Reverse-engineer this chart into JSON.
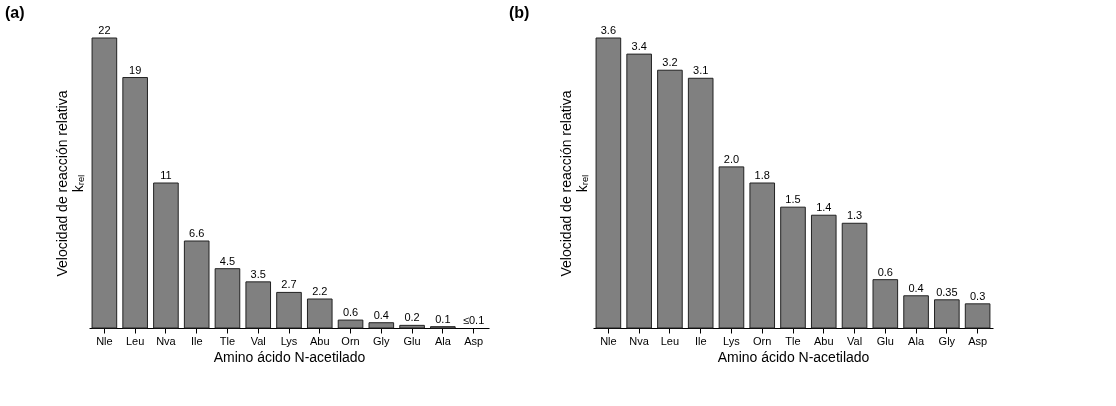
{
  "chart_data": [
    {
      "type": "bar",
      "title": "(a)",
      "xlabel": "Amino ácido N-acetilado",
      "ylabel": "Velocidad de reacción relativa\nkᵣₑₗ",
      "categories": [
        "Nle",
        "Leu",
        "Nva",
        "Ile",
        "Tle",
        "Val",
        "Lys",
        "Abu",
        "Orn",
        "Gly",
        "Glu",
        "Ala",
        "Asp"
      ],
      "values": [
        22,
        19,
        11,
        6.6,
        4.5,
        3.5,
        2.7,
        2.2,
        0.6,
        0.4,
        0.2,
        0.1,
        0
      ],
      "value_labels": [
        "22",
        "19",
        "11",
        "6.6",
        "4.5",
        "3.5",
        "2.7",
        "2.2",
        "0.6",
        "0.4",
        "0.2",
        "0.1",
        "≤0.1"
      ],
      "color": "#808080",
      "ylim": [
        0,
        22
      ],
      "grid": false,
      "tick_labels": "x"
    },
    {
      "type": "bar",
      "title": "(b)",
      "xlabel": "Amino ácido N-acetilado",
      "ylabel": "Velocidad de reacción relativa\nkᵣₑₗ",
      "categories": [
        "Nle",
        "Nva",
        "Leu",
        "Ile",
        "Lys",
        "Orn",
        "Tle",
        "Abu",
        "Val",
        "Glu",
        "Ala",
        "Gly",
        "Asp"
      ],
      "values": [
        3.6,
        3.4,
        3.2,
        3.1,
        2.0,
        1.8,
        1.5,
        1.4,
        1.3,
        0.6,
        0.4,
        0.35,
        0.3
      ],
      "value_labels": [
        "3.6",
        "3.4",
        "3.2",
        "3.1",
        "2.0",
        "1.8",
        "1.5",
        "1.4",
        "1.3",
        "0.6",
        "0.4",
        "0.35",
        "0.3"
      ],
      "color": "#808080",
      "ylim": [
        0,
        3.6
      ],
      "grid": false,
      "tick_labels": "x"
    }
  ]
}
